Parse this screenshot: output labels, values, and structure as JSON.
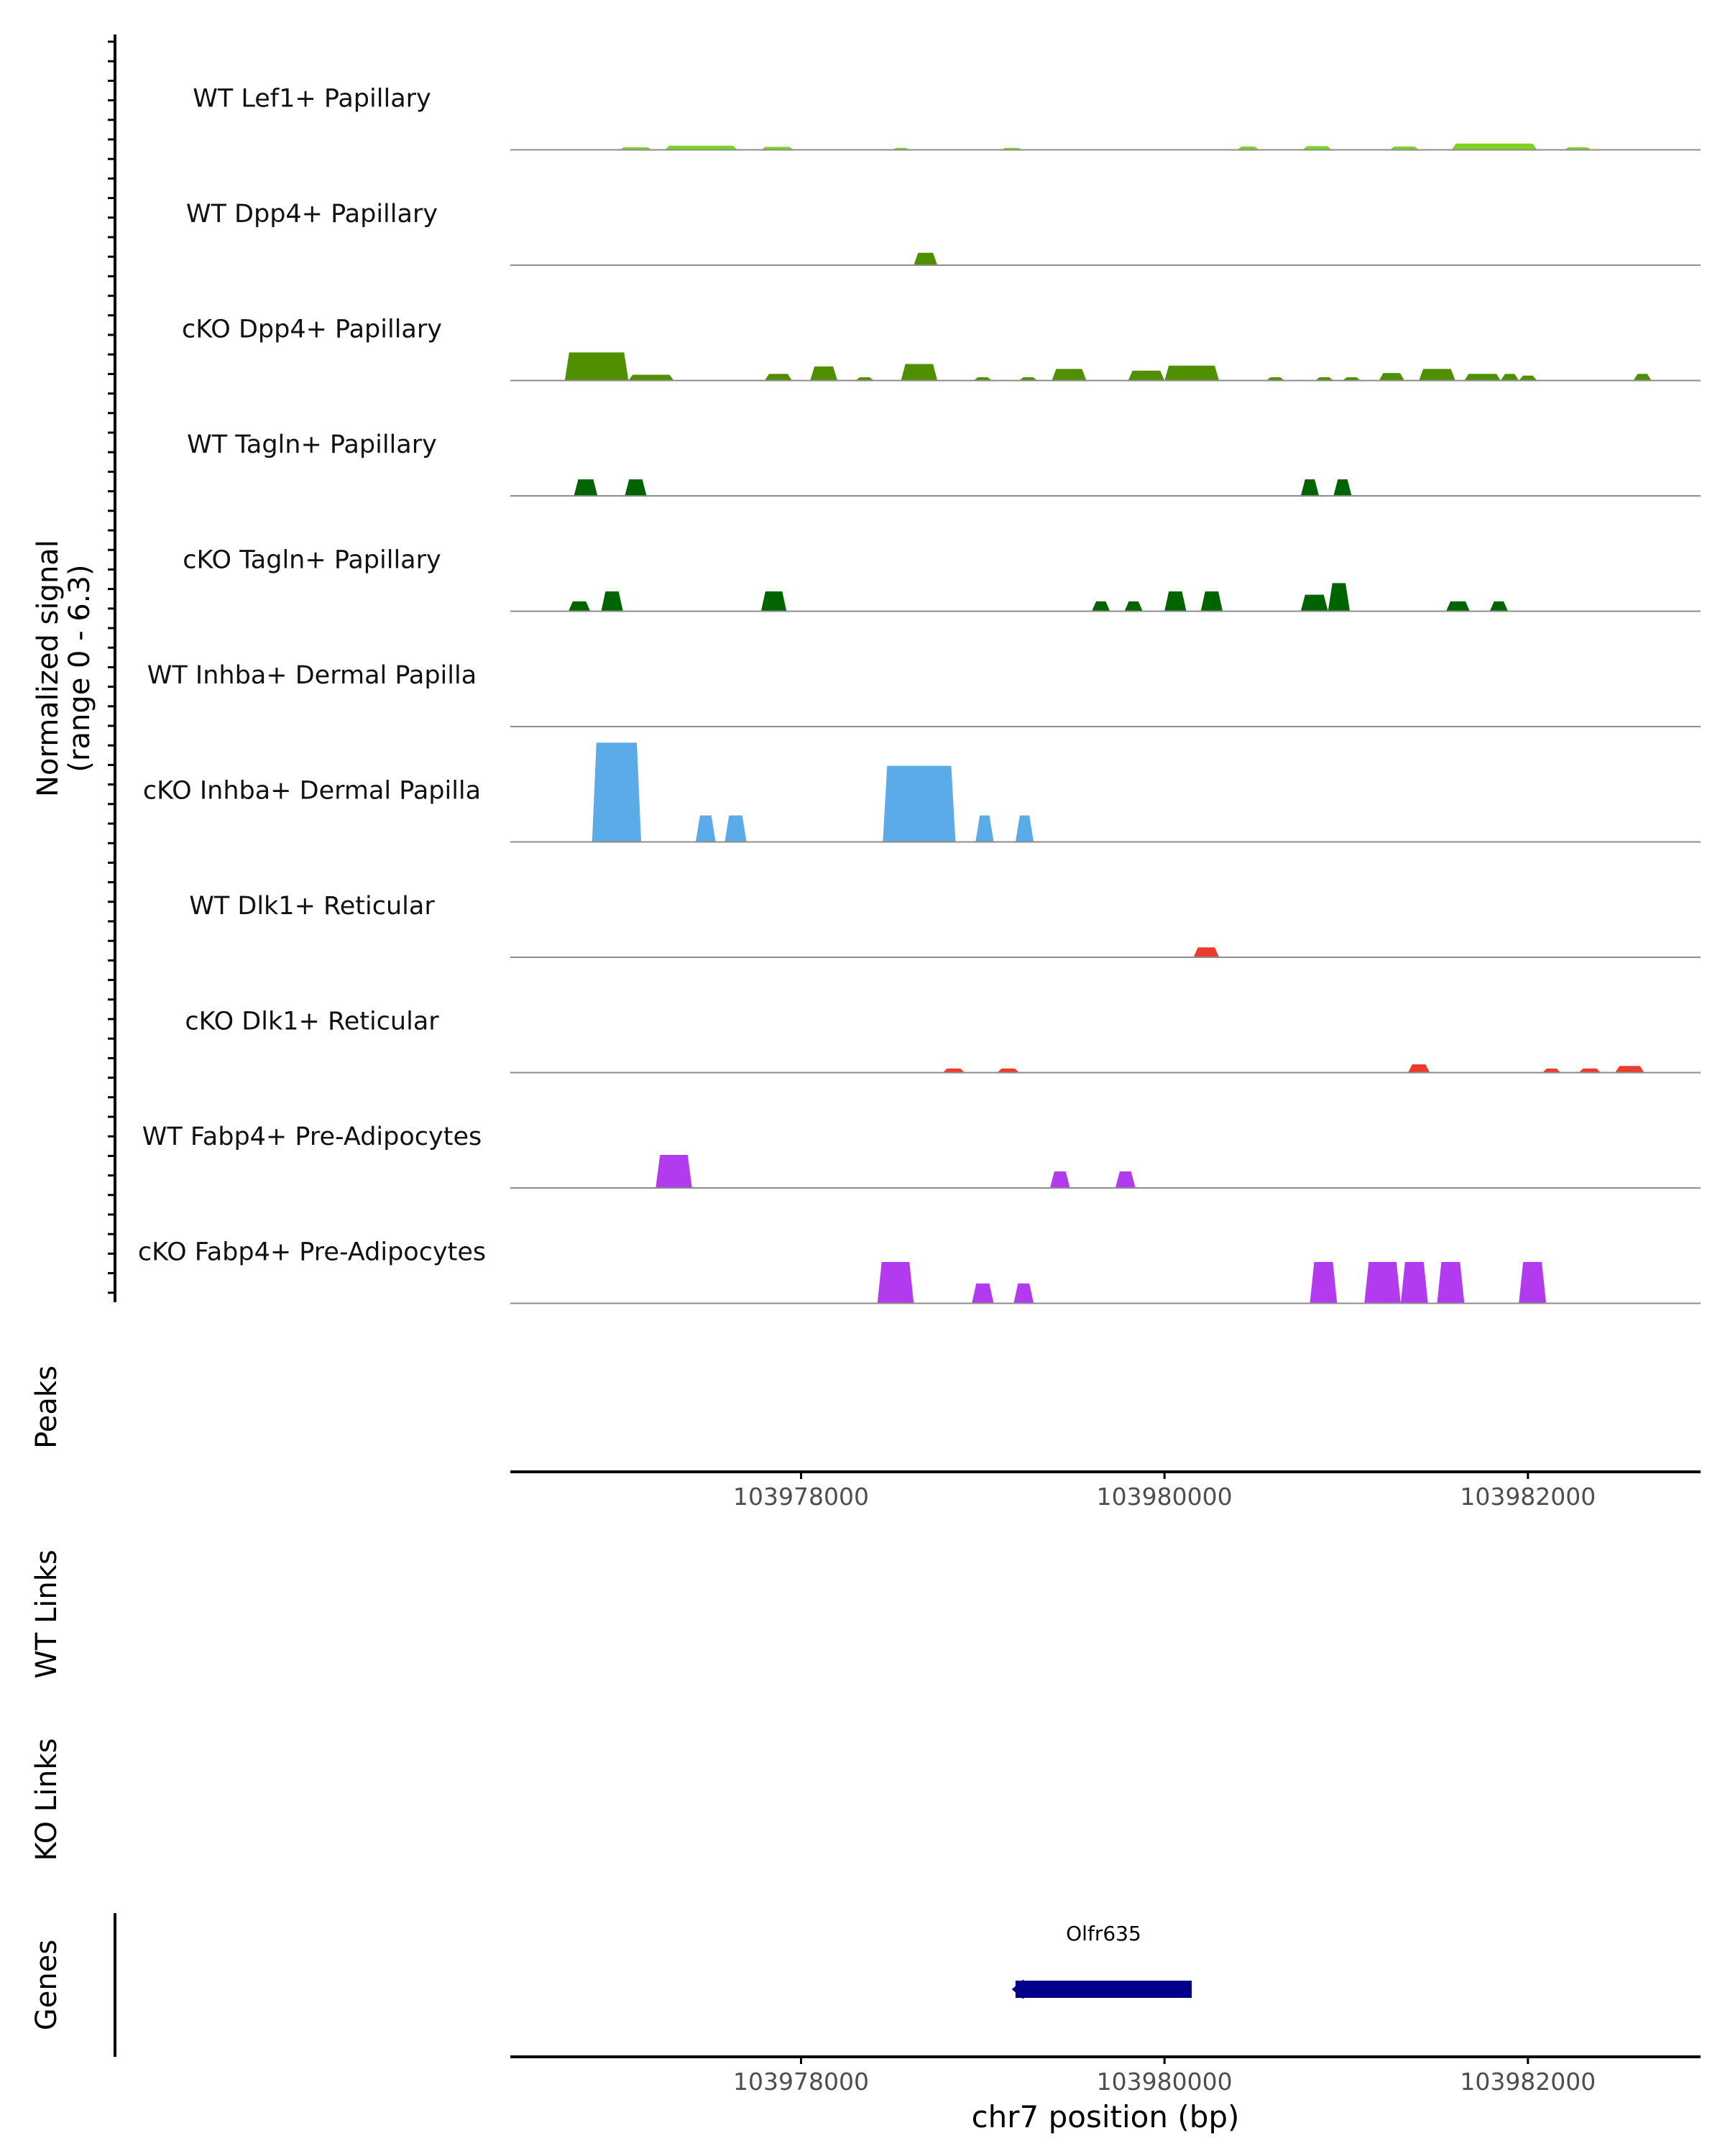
{
  "chart_data": {
    "type": "coverage-track",
    "chromosome": "chr7",
    "xlim": [
      103976400,
      103982950
    ],
    "x_ticks": [
      103978000,
      103980000,
      103982000
    ],
    "x_tick_labels": [
      "103978000",
      "103980000",
      "103982000"
    ],
    "xlabel": "chr7 position (bp)",
    "ylabel_line1": "Normalized signal",
    "ylabel_line2": "(range 0 - 6.3)",
    "y_range": [
      0,
      6.3
    ],
    "panel_labels": {
      "peaks": "Peaks",
      "wt_links": "WT Links",
      "ko_links": "KO Links",
      "genes": "Genes"
    },
    "tracks": [
      {
        "name": "WT Lef1+ Papillary",
        "color": "#7ed321",
        "peaks": [
          [
            103977000,
            103977180,
            0.15
          ],
          [
            103977250,
            103977650,
            0.25
          ],
          [
            103977780,
            103977960,
            0.18
          ],
          [
            103978500,
            103978600,
            0.12
          ],
          [
            103979100,
            103979220,
            0.12
          ],
          [
            103980400,
            103980520,
            0.2
          ],
          [
            103980760,
            103980920,
            0.22
          ],
          [
            103981240,
            103981400,
            0.2
          ],
          [
            103981580,
            103982050,
            0.38
          ],
          [
            103982200,
            103982350,
            0.15
          ]
        ]
      },
      {
        "name": "WT Dpp4+ Papillary",
        "color": "#4f8f00",
        "peaks": [
          [
            103978620,
            103978750,
            0.75
          ]
        ]
      },
      {
        "name": "cKO Dpp4+ Papillary",
        "color": "#4f8f00",
        "peaks": [
          [
            103976700,
            103977050,
            1.7
          ],
          [
            103977050,
            103977300,
            0.35
          ],
          [
            103977800,
            103977950,
            0.4
          ],
          [
            103978050,
            103978200,
            0.85
          ],
          [
            103978300,
            103978400,
            0.2
          ],
          [
            103978550,
            103978750,
            1.0
          ],
          [
            103978950,
            103979050,
            0.2
          ],
          [
            103979200,
            103979300,
            0.2
          ],
          [
            103979380,
            103979570,
            0.7
          ],
          [
            103979800,
            103980000,
            0.6
          ],
          [
            103980000,
            103980300,
            0.9
          ],
          [
            103980560,
            103980660,
            0.2
          ],
          [
            103980830,
            103980930,
            0.2
          ],
          [
            103980980,
            103981080,
            0.2
          ],
          [
            103981180,
            103981320,
            0.45
          ],
          [
            103981400,
            103981600,
            0.7
          ],
          [
            103981650,
            103981850,
            0.4
          ],
          [
            103981850,
            103981950,
            0.4
          ],
          [
            103981950,
            103982050,
            0.3
          ],
          [
            103982580,
            103982680,
            0.4
          ]
        ]
      },
      {
        "name": "WT Tagln+ Papillary",
        "color": "#006400",
        "peaks": [
          [
            103976750,
            103976880,
            1.0
          ],
          [
            103977030,
            103977150,
            1.0
          ],
          [
            103980750,
            103980850,
            1.0
          ],
          [
            103980930,
            103981030,
            1.0
          ]
        ]
      },
      {
        "name": "cKO Tagln+ Papillary",
        "color": "#006400",
        "peaks": [
          [
            103976720,
            103976840,
            0.6
          ],
          [
            103976900,
            103977020,
            1.2
          ],
          [
            103977780,
            103977920,
            1.2
          ],
          [
            103979600,
            103979700,
            0.6
          ],
          [
            103979780,
            103979880,
            0.6
          ],
          [
            103980000,
            103980120,
            1.2
          ],
          [
            103980200,
            103980320,
            1.2
          ],
          [
            103980750,
            103980900,
            1.0
          ],
          [
            103980900,
            103981020,
            1.7
          ],
          [
            103981550,
            103981680,
            0.6
          ],
          [
            103981790,
            103981890,
            0.6
          ]
        ]
      },
      {
        "name": "WT Inhba+ Dermal Papilla",
        "color": "#5aabe8",
        "peaks": []
      },
      {
        "name": "cKO Inhba+ Dermal Papilla",
        "color": "#5aabe8",
        "peaks": [
          [
            103976850,
            103977120,
            6.0
          ],
          [
            103977420,
            103977530,
            1.6
          ],
          [
            103977580,
            103977700,
            1.6
          ],
          [
            103978450,
            103978850,
            4.6
          ],
          [
            103978960,
            103979060,
            1.6
          ],
          [
            103979180,
            103979280,
            1.6
          ]
        ]
      },
      {
        "name": "WT Dlk1+ Reticular",
        "color": "#ef3b2c",
        "peaks": [
          [
            103980160,
            103980300,
            0.6
          ]
        ]
      },
      {
        "name": "cKO Dlk1+ Reticular",
        "color": "#ef3b2c",
        "peaks": [
          [
            103978780,
            103978900,
            0.25
          ],
          [
            103979080,
            103979200,
            0.25
          ],
          [
            103981340,
            103981460,
            0.5
          ],
          [
            103982080,
            103982180,
            0.25
          ],
          [
            103982280,
            103982400,
            0.25
          ],
          [
            103982480,
            103982640,
            0.4
          ]
        ]
      },
      {
        "name": "WT Fabp4+ Pre-Adipocytes",
        "color": "#b23bf0",
        "peaks": [
          [
            103977200,
            103977400,
            2.0
          ],
          [
            103979370,
            103979480,
            1.0
          ],
          [
            103979730,
            103979840,
            1.0
          ]
        ]
      },
      {
        "name": "cKO Fabp4+ Pre-Adipocytes",
        "color": "#b23bf0",
        "peaks": [
          [
            103978420,
            103978620,
            2.5
          ],
          [
            103978940,
            103979060,
            1.2
          ],
          [
            103979170,
            103979280,
            1.2
          ],
          [
            103980800,
            103980950,
            2.5
          ],
          [
            103981100,
            103981300,
            2.5
          ],
          [
            103981300,
            103981450,
            2.5
          ],
          [
            103981500,
            103981650,
            2.5
          ],
          [
            103981950,
            103982100,
            2.5
          ]
        ]
      }
    ],
    "genes": [
      {
        "name": "Olfr635",
        "start": 103979180,
        "end": 103980150,
        "strand": "-",
        "color": "#00008b"
      }
    ]
  }
}
